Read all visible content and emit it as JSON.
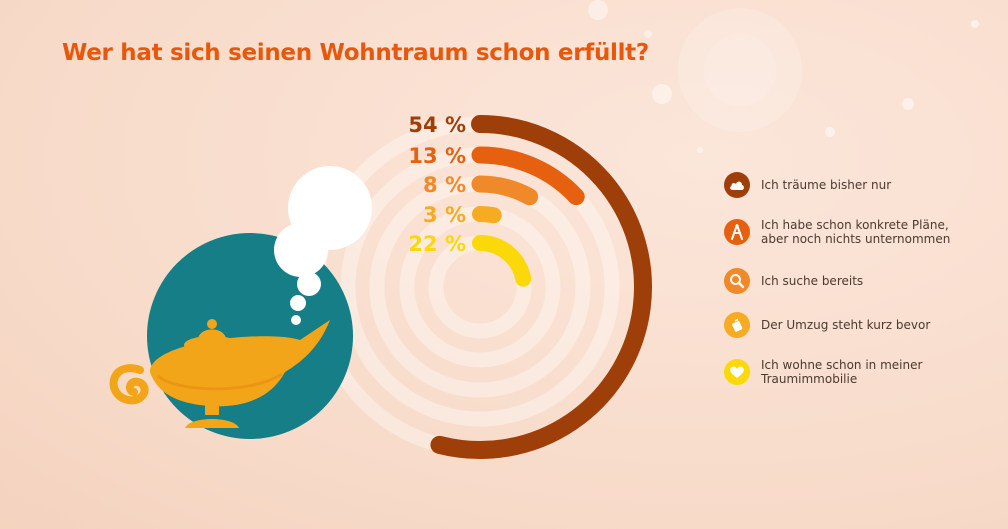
{
  "title": "Wer hat sich seinen Wohntraum schon erfüllt?",
  "chart_data": {
    "type": "radial-bar",
    "title": "Wer hat sich seinen Wohntraum schon erfüllt?",
    "unit": "%",
    "max": 100,
    "series": [
      {
        "label": "Ich träume bisher nur",
        "value": 54,
        "display": "54 %",
        "color": "#9e3f0a",
        "icon": "cloud-icon"
      },
      {
        "label": "Ich habe schon konkrete Pläne,\naber noch nichts unternommen",
        "value": 13,
        "display": "13 %",
        "color": "#e5600f",
        "icon": "compass-icon"
      },
      {
        "label": "Ich suche bereits",
        "value": 8,
        "display": "8 %",
        "color": "#f0892a",
        "icon": "magnifier-icon"
      },
      {
        "label": "Der Umzug steht kurz bevor",
        "value": 3,
        "display": "3 %",
        "color": "#f6ab22",
        "icon": "luggage-icon"
      },
      {
        "label": "Ich wohne schon in meiner\nTraumimmobilie",
        "value": 22,
        "display": "22 %",
        "color": "#fbd80a",
        "icon": "heart-icon"
      }
    ]
  }
}
